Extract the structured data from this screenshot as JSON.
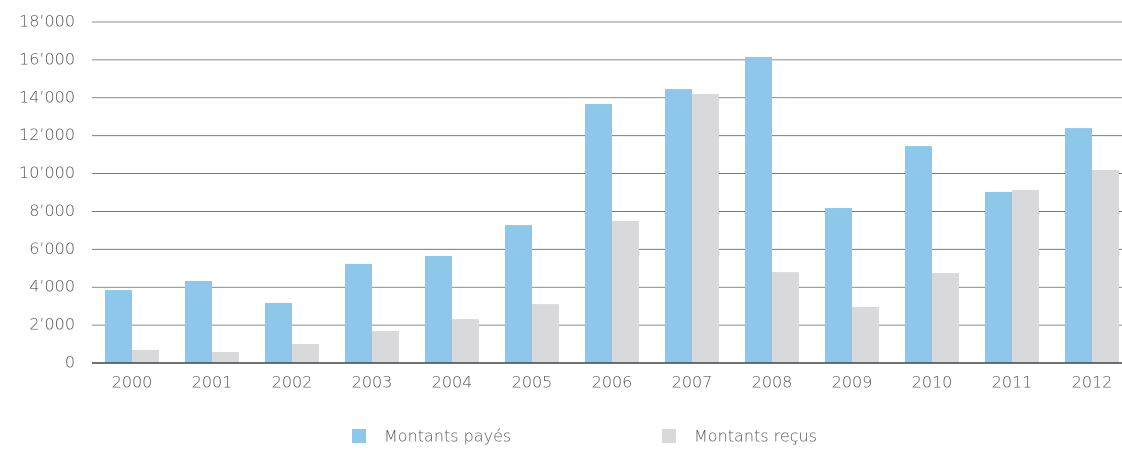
{
  "chart_data": {
    "type": "bar",
    "categories": [
      "2000",
      "2001",
      "2002",
      "2003",
      "2004",
      "2005",
      "2006",
      "2007",
      "2008",
      "2009",
      "2010",
      "2011",
      "2012"
    ],
    "series": [
      {
        "name": "Montants payés",
        "color": "#8dc8ea",
        "values": [
          3850,
          4330,
          3170,
          5230,
          5650,
          7280,
          13670,
          14460,
          16150,
          8180,
          11450,
          9030,
          12400
        ]
      },
      {
        "name": "Montants reçus",
        "color": "#d9d9db",
        "values": [
          690,
          580,
          1000,
          1690,
          2320,
          3110,
          7500,
          14200,
          4800,
          2960,
          4750,
          9130,
          10190
        ]
      }
    ],
    "ylim": [
      0,
      18000
    ],
    "yticks": [
      0,
      {
        "value": 2000,
        "label": "2’000"
      },
      {
        "value": 4000,
        "label": "4’000"
      },
      {
        "value": 6000,
        "label": "6’000"
      },
      {
        "value": 8000,
        "label": "8’000"
      },
      {
        "value": 10000,
        "label": "10’000"
      },
      {
        "value": 12000,
        "label": "12’000"
      },
      {
        "value": 14000,
        "label": "14’000"
      },
      {
        "value": 16000,
        "label": "16’000"
      },
      {
        "value": 18000,
        "label": "18’000"
      }
    ],
    "grid": true,
    "legend": "bottom"
  }
}
